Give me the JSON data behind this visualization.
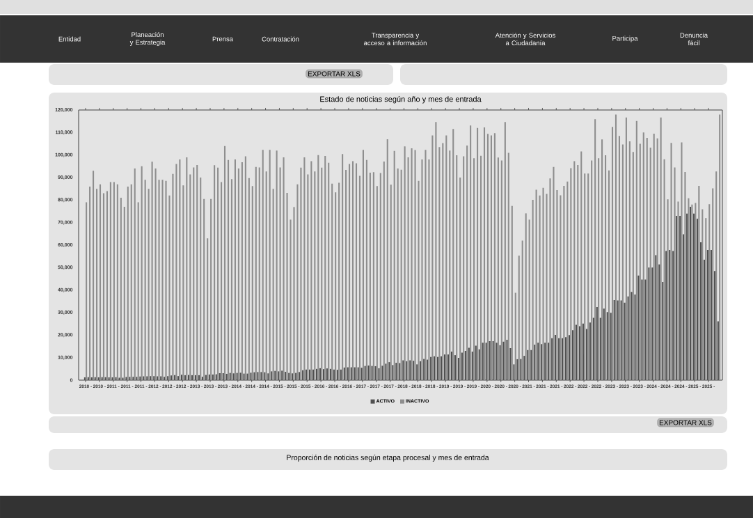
{
  "chart_data": {
    "type": "bar",
    "title": "Estado de noticias según año y mes de entrada",
    "categories": [
      "2010 -",
      null,
      null,
      null,
      "2010 -",
      null,
      null,
      null,
      "2011 -",
      null,
      null,
      null,
      "2011 -",
      null,
      null,
      null,
      "2011 -",
      null,
      null,
      null,
      "2012 -",
      null,
      null,
      null,
      "2012 -",
      null,
      null,
      null,
      "2012 -",
      null,
      null,
      null,
      "2013 -",
      null,
      null,
      null,
      "2013 -",
      null,
      null,
      null,
      "2013 -",
      null,
      null,
      null,
      "2014 -",
      null,
      null,
      null,
      "2014 -",
      null,
      null,
      null,
      "2014 -",
      null,
      null,
      null,
      "2015 -",
      null,
      null,
      null,
      "2015 -",
      null,
      null,
      null,
      "2015 -",
      null,
      null,
      null,
      "2016 -",
      null,
      null,
      null,
      "2016 -",
      null,
      null,
      null,
      "2016 -",
      null,
      null,
      null,
      "2017 -",
      null,
      null,
      null,
      "2017 -",
      null,
      null,
      null,
      "2017 -",
      null,
      null,
      null,
      "2018 -",
      null,
      null,
      null,
      "2018 -",
      null,
      null,
      null,
      "2018 -",
      null,
      null,
      null,
      "2019 -",
      null,
      null,
      null,
      "2019 -",
      null,
      null,
      null,
      "2019 -",
      null,
      null,
      null,
      "2020 -",
      null,
      null,
      null,
      "2020 -",
      null,
      null,
      null,
      "2020 -",
      null,
      null,
      null,
      "2021 -",
      null,
      null,
      null,
      "2021 -",
      null,
      null,
      null,
      "2021 -",
      null,
      null,
      null,
      "2022 -",
      null,
      null,
      null,
      "2022 -",
      null,
      null,
      null,
      "2022 -",
      null,
      null,
      null,
      "2023 -",
      null,
      null,
      null,
      "2023 -",
      null,
      null,
      null,
      "2023 -",
      null,
      null,
      null,
      "2024 -",
      null,
      null,
      null,
      "2024 -",
      null,
      null,
      null,
      "2024 -",
      null,
      null,
      null,
      "2025 -",
      null,
      null,
      null,
      "2025 -",
      null,
      null,
      null
    ],
    "series": [
      {
        "name": "ACTIVO",
        "color": "#505050",
        "values": [
          1200,
          1300,
          1200,
          1300,
          1200,
          1300,
          1300,
          1200,
          1200,
          1300,
          1100,
          1100,
          1400,
          1500,
          1500,
          1500,
          1600,
          1700,
          1700,
          1800,
          1800,
          1700,
          1700,
          1500,
          1800,
          2100,
          2200,
          1800,
          2400,
          2200,
          2300,
          2200,
          2200,
          2200,
          1500,
          2300,
          2500,
          2500,
          2600,
          3100,
          3100,
          2800,
          3200,
          3000,
          3200,
          3300,
          2900,
          2900,
          3300,
          3500,
          3600,
          3600,
          3500,
          3000,
          3900,
          4100,
          3900,
          4200,
          3700,
          3200,
          3000,
          3200,
          3600,
          4400,
          4700,
          4700,
          4700,
          5000,
          5300,
          4900,
          5200,
          5000,
          4700,
          4600,
          4700,
          5600,
          5700,
          5700,
          5700,
          5700,
          5500,
          6300,
          6500,
          6300,
          6200,
          5300,
          6400,
          7300,
          8000,
          6700,
          7700,
          7600,
          8800,
          8400,
          8800,
          8600,
          7000,
          8400,
          9400,
          9100,
          10300,
          10600,
          10300,
          10600,
          11400,
          11400,
          12700,
          11100,
          9900,
          12200,
          13000,
          14400,
          12700,
          15300,
          13700,
          16600,
          16600,
          17300,
          17300,
          16600,
          15500,
          17100,
          17900,
          14200,
          7000,
          9300,
          9400,
          10800,
          13400,
          13400,
          15800,
          16600,
          16000,
          16600,
          16600,
          18600,
          20100,
          18600,
          18600,
          19100,
          20000,
          22200,
          24600,
          24000,
          25100,
          22700,
          25600,
          27700,
          32500,
          27700,
          31800,
          30200,
          29900,
          35600,
          35400,
          35400,
          34400,
          37200,
          39200,
          38000,
          46500,
          44700,
          44700,
          50000,
          50000,
          55500,
          51400,
          43600,
          57400,
          57800,
          57400,
          73000,
          73000,
          64800,
          74000,
          77000,
          74000,
          71700,
          61200,
          53500,
          57800,
          57800,
          48500,
          26100
        ]
      },
      {
        "name": "INACTIVO",
        "color": "#8e8e8e",
        "values": [
          79000,
          86000,
          93000,
          85000,
          87000,
          83000,
          84000,
          88000,
          88000,
          87000,
          81000,
          77000,
          86000,
          87000,
          94000,
          79000,
          95000,
          89000,
          85000,
          97000,
          94000,
          89000,
          89000,
          88500,
          82000,
          91600,
          96000,
          98000,
          86500,
          99000,
          91400,
          94500,
          95600,
          90000,
          80500,
          63000,
          80500,
          95500,
          94400,
          88000,
          104000,
          97800,
          89300,
          98000,
          94000,
          96800,
          99400,
          89800,
          86200,
          94700,
          94500,
          102300,
          92700,
          102300,
          85000,
          102000,
          94500,
          99000,
          83200,
          71300,
          76900,
          87000,
          94400,
          99000,
          91400,
          97300,
          92700,
          100000,
          94400,
          99600,
          96600,
          87300,
          83400,
          87700,
          100400,
          93400,
          96000,
          97300,
          96300,
          90800,
          102300,
          97800,
          92200,
          92400,
          86200,
          92000,
          97100,
          107000,
          86800,
          101800,
          94000,
          93500,
          103800,
          99000,
          103000,
          102200,
          88500,
          98000,
          102300,
          98000,
          108700,
          114700,
          103500,
          105300,
          108700,
          102000,
          111600,
          99900,
          90000,
          99400,
          104200,
          113100,
          98600,
          112000,
          99700,
          112300,
          109400,
          108700,
          109700,
          98900,
          97600,
          114700,
          101000,
          77400,
          38800,
          55300,
          62000,
          74100,
          71300,
          80100,
          84600,
          82000,
          85400,
          82700,
          89600,
          94700,
          84400,
          82100,
          86300,
          88200,
          94200,
          97300,
          95600,
          101600,
          91800,
          91800,
          97600,
          115900,
          98600,
          106900,
          99900,
          93200,
          112500,
          118000,
          108500,
          104700,
          116700,
          106100,
          101400,
          115100,
          105000,
          110000,
          107600,
          103300,
          109500,
          107400,
          116700,
          98100,
          80300,
          105400,
          94500,
          79300,
          105600,
          92500,
          80800,
          78000,
          78700,
          86300,
          75900,
          72000,
          78200,
          85200,
          92700,
          118000
        ]
      }
    ],
    "ylim": [
      0,
      120000
    ],
    "yticks": [
      0,
      {
        "value": 10000,
        "label": "10,000"
      },
      {
        "value": 20000,
        "label": "20,000"
      },
      {
        "value": 30000,
        "label": "30,000"
      },
      {
        "value": 40000,
        "label": "40,000"
      },
      {
        "value": 50000,
        "label": "50,000"
      },
      {
        "value": 60000,
        "label": "60,000"
      },
      {
        "value": 70000,
        "label": "70,000"
      },
      {
        "value": 80000,
        "label": "80,000"
      },
      {
        "value": 90000,
        "label": "90,000"
      },
      {
        "value": 100000,
        "label": "100,000"
      },
      {
        "value": 110000,
        "label": "110,000"
      },
      {
        "value": 120000,
        "label": "120,000"
      }
    ],
    "legend": "bottom",
    "annotations": [
      "Entidad",
      "Planeación y Estrategia",
      "Prensa",
      "Contratación",
      "Transparencia y acceso a información",
      "Atención y Servicios a Ciudadanía",
      "Participa",
      "Denuncia fácil",
      "EXPORTAR XLS",
      "EXPORTAR XLS",
      "Proporción de noticias según etapa procesal y mes de entrada"
    ]
  }
}
